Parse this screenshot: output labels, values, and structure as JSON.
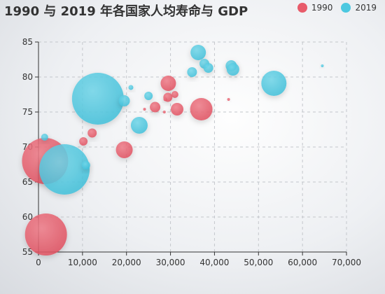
{
  "colors": {
    "series_1990": "#e85b6a",
    "series_2019": "#4cc8e0"
  },
  "chart_data": {
    "type": "scatter",
    "title": "1990 与 2019 年各国家人均寿命与 GDP",
    "xlabel": "",
    "ylabel": "",
    "xlim": [
      0,
      70000
    ],
    "ylim": [
      55,
      85
    ],
    "x_ticks": [
      0,
      10000,
      20000,
      30000,
      40000,
      50000,
      60000,
      70000
    ],
    "y_ticks": [
      55,
      60,
      65,
      70,
      75,
      80,
      85
    ],
    "x_tick_labels": [
      "0",
      "10,000",
      "20,000",
      "30,000",
      "40,000",
      "50,000",
      "60,000",
      "70,000"
    ],
    "y_tick_labels": [
      "55",
      "60",
      "65",
      "70",
      "75",
      "80",
      "85"
    ],
    "grid": true,
    "legend_position": "top-right",
    "bubble_size": "relative",
    "series": [
      {
        "name": "1990",
        "points": [
          {
            "x": 1700,
            "y": 57.5,
            "r": 30
          },
          {
            "x": 1500,
            "y": 68,
            "r": 33
          },
          {
            "x": 10200,
            "y": 70.8,
            "r": 6
          },
          {
            "x": 12200,
            "y": 72,
            "r": 6.5
          },
          {
            "x": 19500,
            "y": 69.6,
            "r": 12
          },
          {
            "x": 29500,
            "y": 79.1,
            "r": 11
          },
          {
            "x": 31000,
            "y": 77.5,
            "r": 5
          },
          {
            "x": 29400,
            "y": 77.1,
            "r": 6.5
          },
          {
            "x": 28800,
            "y": 76.8,
            "r": 2.5
          },
          {
            "x": 26500,
            "y": 75.7,
            "r": 7.5
          },
          {
            "x": 31500,
            "y": 75.4,
            "r": 9
          },
          {
            "x": 37000,
            "y": 75.4,
            "r": 16
          },
          {
            "x": 28600,
            "y": 75.0,
            "r": 2
          },
          {
            "x": 24100,
            "y": 75.4,
            "r": 2
          },
          {
            "x": 43200,
            "y": 76.8,
            "r": 2
          }
        ]
      },
      {
        "name": "2019",
        "points": [
          {
            "x": 13500,
            "y": 76.9,
            "r": 37
          },
          {
            "x": 5900,
            "y": 66.8,
            "r": 36
          },
          {
            "x": 1400,
            "y": 71.4,
            "r": 5
          },
          {
            "x": 10800,
            "y": 67.4,
            "r": 6
          },
          {
            "x": 19500,
            "y": 76.6,
            "r": 8
          },
          {
            "x": 22900,
            "y": 73.1,
            "r": 12
          },
          {
            "x": 21000,
            "y": 78.5,
            "r": 3.5
          },
          {
            "x": 25000,
            "y": 77.3,
            "r": 6
          },
          {
            "x": 36300,
            "y": 83.5,
            "r": 11
          },
          {
            "x": 34900,
            "y": 80.7,
            "r": 7
          },
          {
            "x": 37700,
            "y": 81.9,
            "r": 7
          },
          {
            "x": 38600,
            "y": 81.3,
            "r": 7
          },
          {
            "x": 43800,
            "y": 81.6,
            "r": 8
          },
          {
            "x": 44200,
            "y": 81.1,
            "r": 9
          },
          {
            "x": 53500,
            "y": 79.1,
            "r": 18
          },
          {
            "x": 64500,
            "y": 81.6,
            "r": 2
          }
        ]
      }
    ]
  }
}
